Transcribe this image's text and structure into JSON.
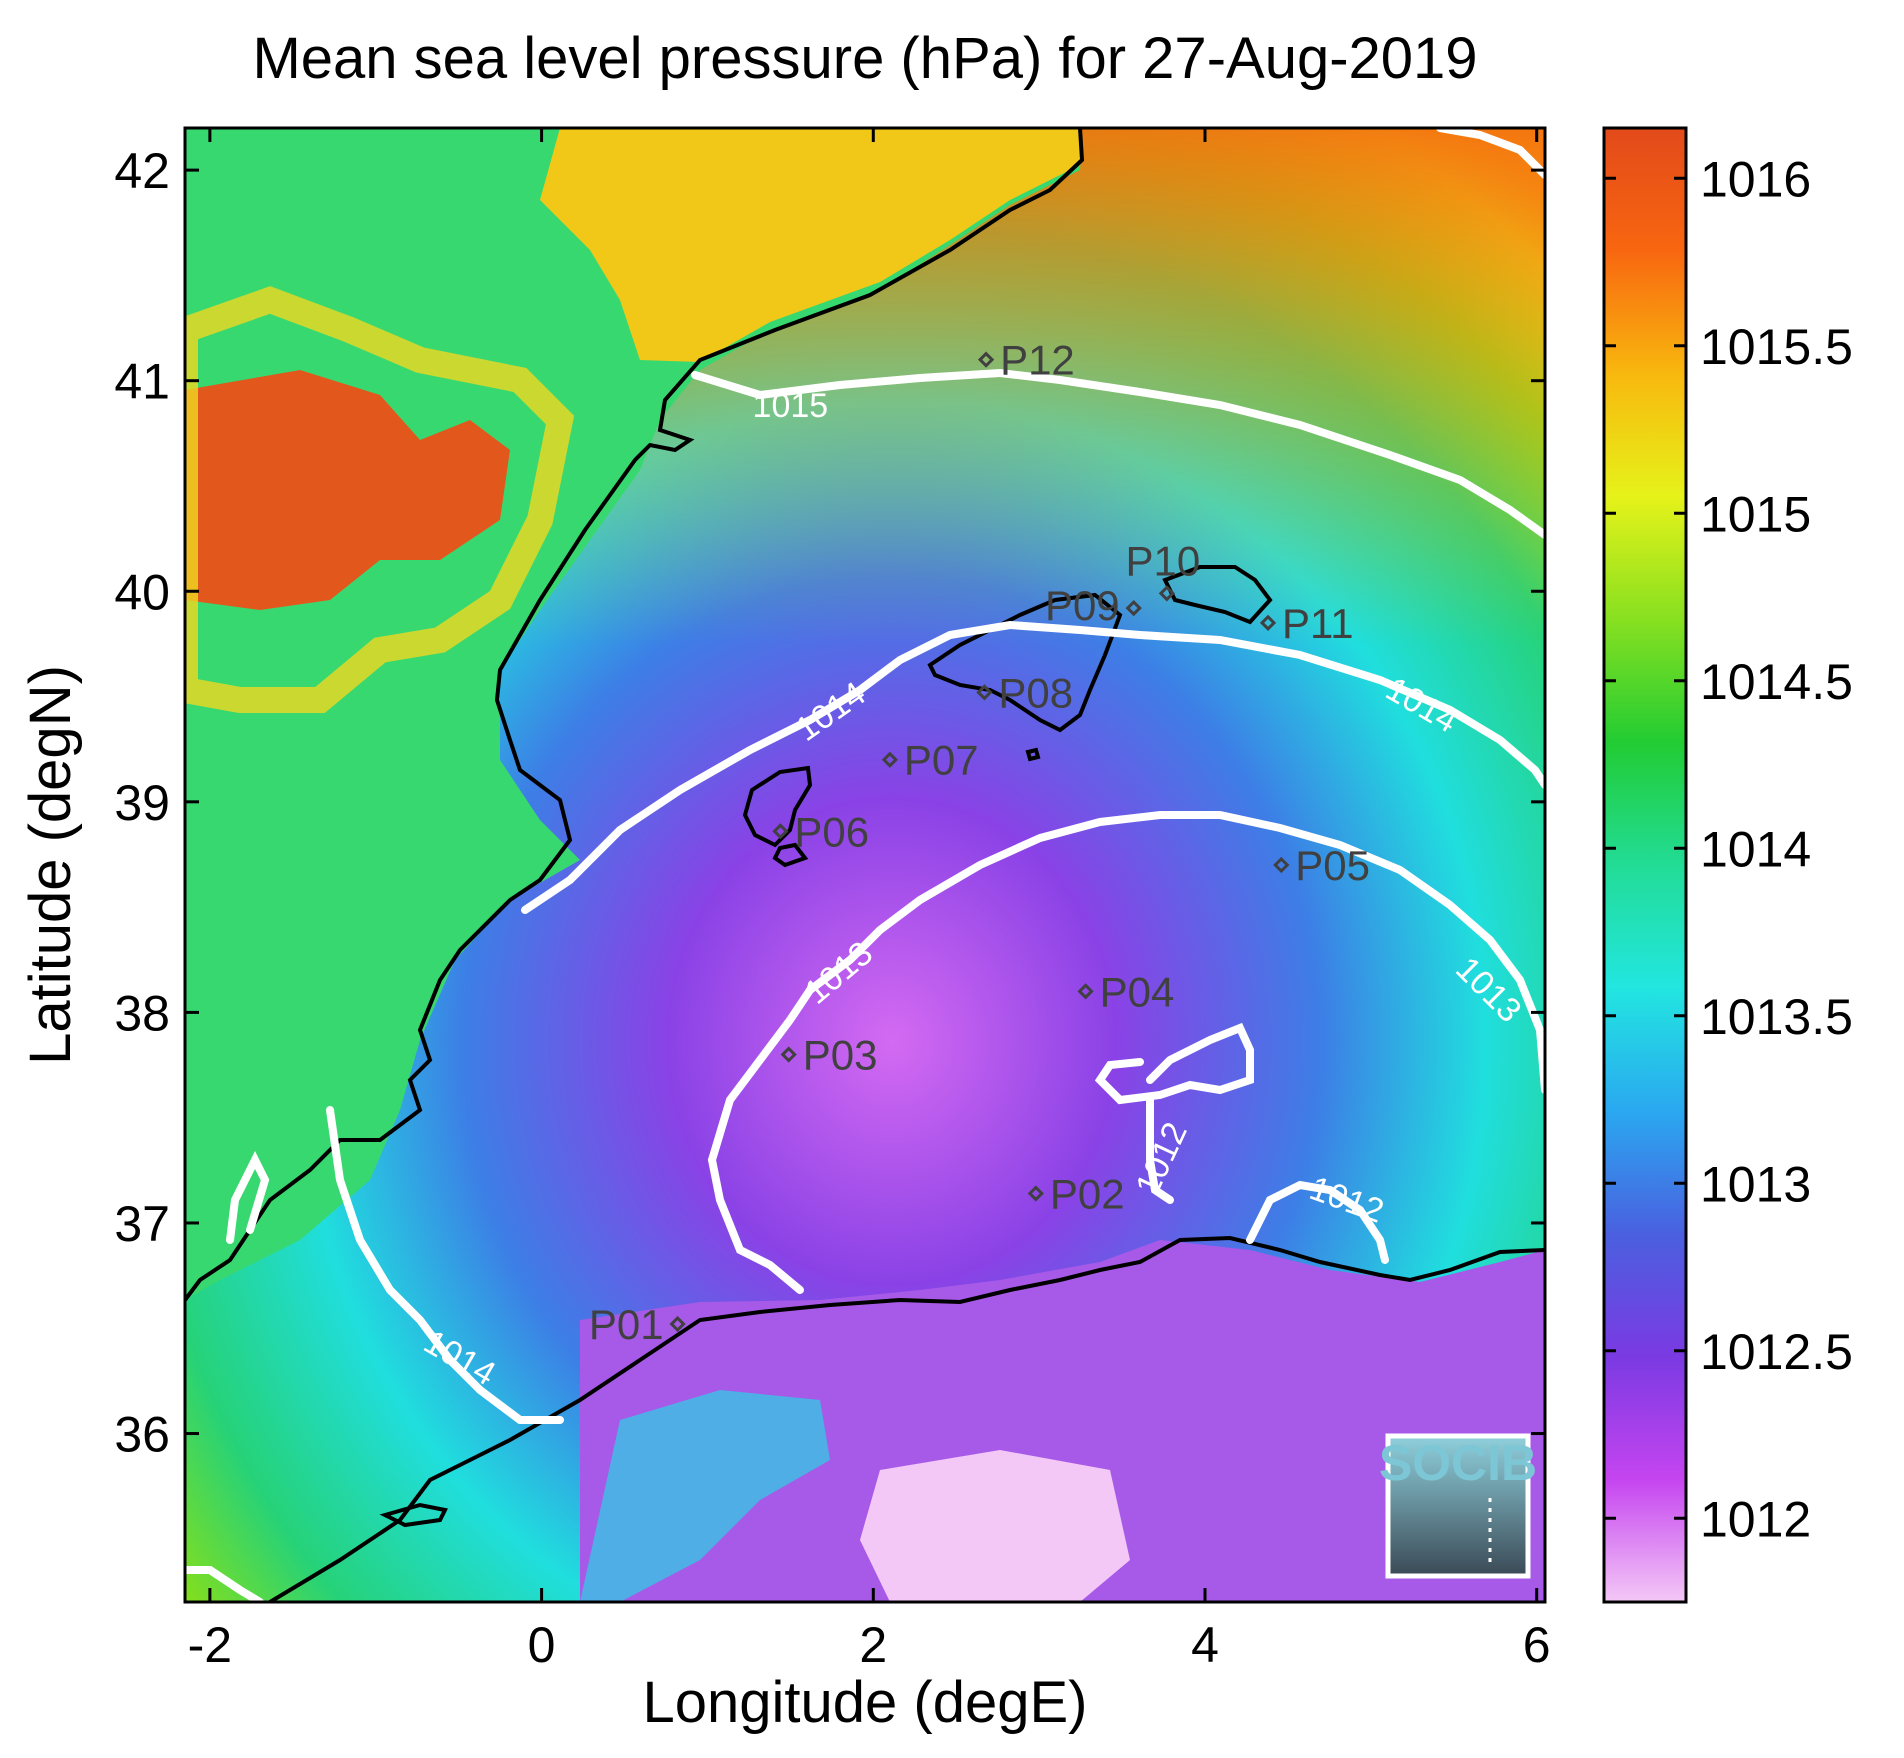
{
  "title": "Mean sea level pressure (hPa) for 27-Aug-2019",
  "xlabel": "Longitude (degE)",
  "ylabel": "Latitude (degN)",
  "xlim": [
    -2.15,
    6.05
  ],
  "ylim": [
    35.2,
    42.2
  ],
  "x_ticks": [
    {
      "value": -2,
      "label": "-2"
    },
    {
      "value": 0,
      "label": "0"
    },
    {
      "value": 2,
      "label": "2"
    },
    {
      "value": 4,
      "label": "4"
    },
    {
      "value": 6,
      "label": "6"
    }
  ],
  "y_ticks": [
    {
      "value": 36,
      "label": "36"
    },
    {
      "value": 37,
      "label": "37"
    },
    {
      "value": 38,
      "label": "38"
    },
    {
      "value": 39,
      "label": "39"
    },
    {
      "value": 40,
      "label": "40"
    },
    {
      "value": 41,
      "label": "41"
    },
    {
      "value": 42,
      "label": "42"
    }
  ],
  "colorbar": {
    "range": [
      1011.75,
      1016.15
    ],
    "ticks": [
      {
        "value": 1012,
        "label": "1012"
      },
      {
        "value": 1012.5,
        "label": "1012.5"
      },
      {
        "value": 1013,
        "label": "1013"
      },
      {
        "value": 1013.5,
        "label": "1013.5"
      },
      {
        "value": 1014,
        "label": "1014"
      },
      {
        "value": 1014.5,
        "label": "1014.5"
      },
      {
        "value": 1015,
        "label": "1015"
      },
      {
        "value": 1015.5,
        "label": "1015.5"
      },
      {
        "value": 1016,
        "label": "1016"
      }
    ],
    "colors": [
      "#f4c8f6",
      "#c545f0",
      "#7a3ae2",
      "#4a60e0",
      "#2aa8f0",
      "#22e6e0",
      "#22dc96",
      "#22cc33",
      "#88e020",
      "#e6f21a",
      "#f8b80e",
      "#f86610",
      "#e24a1a"
    ]
  },
  "contour_labels": [
    {
      "text": "1015",
      "lon": 1.5,
      "lat": 40.87,
      "angle": 0
    },
    {
      "text": "1014",
      "lon": 1.75,
      "lat": 39.42,
      "angle": -35
    },
    {
      "text": "1014",
      "lon": 5.3,
      "lat": 39.45,
      "angle": 30
    },
    {
      "text": "1014",
      "lon": -0.5,
      "lat": 36.35,
      "angle": 30
    },
    {
      "text": "1013",
      "lon": 1.8,
      "lat": 38.18,
      "angle": -40
    },
    {
      "text": "1013",
      "lon": 5.7,
      "lat": 38.1,
      "angle": 45
    },
    {
      "text": "1012",
      "lon": 3.75,
      "lat": 37.3,
      "angle": -65
    },
    {
      "text": "1012",
      "lon": 4.85,
      "lat": 37.1,
      "angle": 20
    }
  ],
  "stations": [
    {
      "label": "P01",
      "lon": 0.82,
      "lat": 36.52,
      "side": "left"
    },
    {
      "label": "P02",
      "lon": 2.98,
      "lat": 37.14,
      "side": "right"
    },
    {
      "label": "P03",
      "lon": 1.49,
      "lat": 37.8,
      "side": "right"
    },
    {
      "label": "P04",
      "lon": 3.28,
      "lat": 38.1,
      "side": "right"
    },
    {
      "label": "P05",
      "lon": 4.46,
      "lat": 38.7,
      "side": "right"
    },
    {
      "label": "P06",
      "lon": 1.44,
      "lat": 38.86,
      "side": "right"
    },
    {
      "label": "P07",
      "lon": 2.1,
      "lat": 39.2,
      "side": "right"
    },
    {
      "label": "P08",
      "lon": 2.67,
      "lat": 39.52,
      "side": "right"
    },
    {
      "label": "P09",
      "lon": 3.57,
      "lat": 39.92,
      "side": "leftup"
    },
    {
      "label": "P10",
      "lon": 3.77,
      "lat": 39.99,
      "side": "up"
    },
    {
      "label": "P11",
      "lon": 4.38,
      "lat": 39.85,
      "side": "right"
    },
    {
      "label": "P12",
      "lon": 2.68,
      "lat": 41.1,
      "side": "right"
    }
  ],
  "logo": {
    "text": "SOCIB"
  }
}
